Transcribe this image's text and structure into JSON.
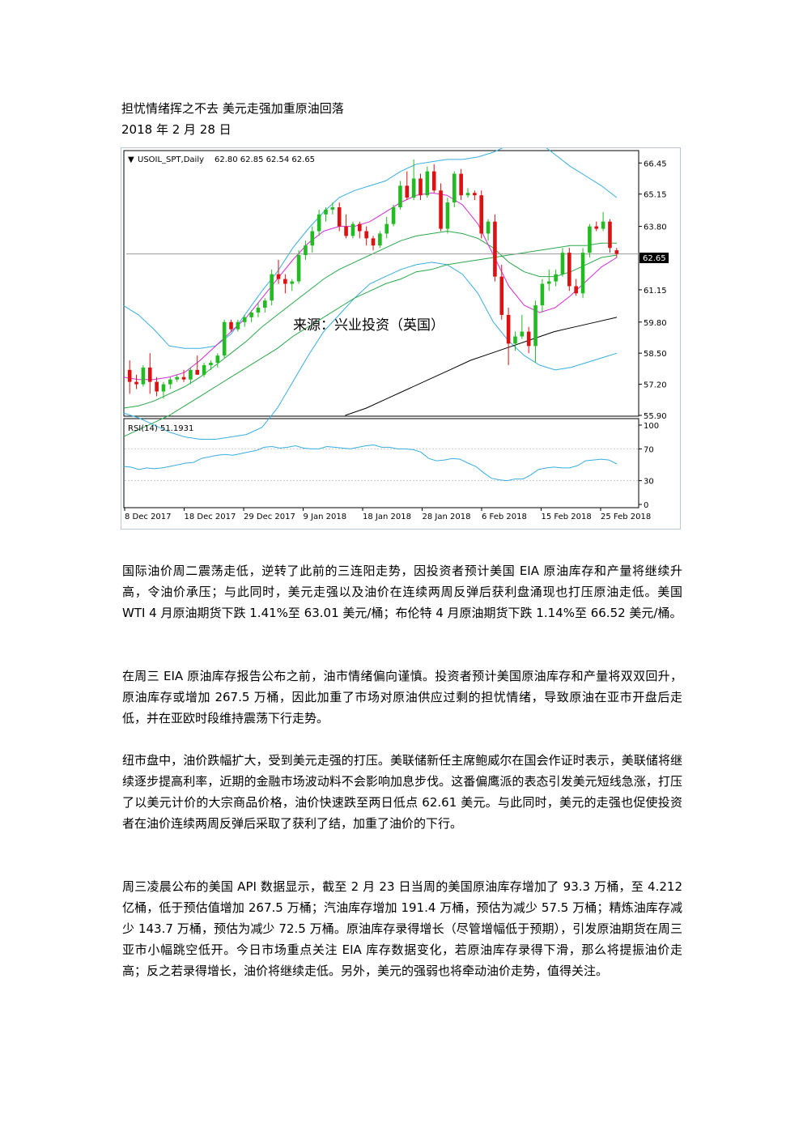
{
  "article": {
    "title": "担忧情绪挥之不去 美元走强加重原油回落",
    "date": "2018 年 2 月 28 日",
    "paragraphs": [
      "国际油价周二震荡走低，逆转了此前的三连阳走势，因投资者预计美国 EIA 原油库存和产量将继续升高，令油价承压；与此同时，美元走强以及油价在连续两周反弹后获利盘涌现也打压原油走低。美国 WTI 4 月原油期货下跌 1.41%至 63.01 美元/桶；布伦特 4 月原油期货下跌 1.14%至 66.52 美元/桶。",
      "在周三 EIA 原油库存报告公布之前，油市情绪偏向谨慎。投资者预计美国原油库存和产量将双双回升，原油库存或增加 267.5 万桶，因此加重了市场对原油供应过剩的担忧情绪，导致原油在亚市开盘后走低，并在亚欧时段维持震荡下行走势。",
      "纽市盘中，油价跌幅扩大，受到美元走强的打压。美联储新任主席鲍威尔在国会作证时表示，美联储将继续逐步提高利率，近期的金融市场波动料不会影响加息步伐。这番偏鹰派的表态引发美元短线急涨，打压了以美元计价的大宗商品价格，油价快速跌至两日低点 62.61 美元。与此同时，美元的走强也促使投资者在油价连续两周反弹后采取了获利了结，加重了油价的下行。",
      "周三凌晨公布的美国 API 数据显示，截至 2 月 23 日当周的美国原油库存增加了 93.3 万桶，至 4.212 亿桶，低于预估值增加 267.5 万桶；汽油库存增加 191.4 万桶，预估为减少 57.5 万桶；精炼油库存减少 143.7 万桶，预估为减少 72.5 万桶。原油库存录得增长（尽管增幅低于预期），引发原油期货在周三亚市小幅跳空低开。今日市场重点关注 EIA 库存数据变化，若原油库存录得下滑，那么将提振油价走高；反之若录得增长，油价将继续走低。另外，美元的强弱也将牵动油价走势，值得关注。"
    ]
  },
  "chart_data": [
    {
      "type": "candlestick",
      "title": "USOIL_SPT,Daily",
      "ohlc_label": "62.80 62.85 62.54 62.65",
      "watermark": "来源：兴业投资（英国）",
      "current_price": "62.65",
      "y_ticks": [
        "66.45",
        "65.15",
        "63.80",
        "61.15",
        "59.80",
        "58.50",
        "57.20",
        "55.90"
      ],
      "ylim": [
        55.9,
        66.9
      ],
      "x_ticks": [
        "8 Dec 2017",
        "18 Dec 2017",
        "29 Dec 2017",
        "9 Jan 2018",
        "18 Jan 2018",
        "28 Jan 2018",
        "6 Feb 2018",
        "15 Feb 2018",
        "25 Feb 2018"
      ],
      "colors": {
        "up": "#22bb22",
        "down": "#dd1111",
        "bollinger": "#38aee0",
        "ma_short": "#d62ad6",
        "ma_mid": "#2aa84a",
        "ma_long": "#000000"
      },
      "candles": [
        {
          "o": 57.8,
          "h": 58.2,
          "l": 56.8,
          "c": 57.3
        },
        {
          "o": 57.3,
          "h": 57.6,
          "l": 57.0,
          "c": 57.2
        },
        {
          "o": 57.2,
          "h": 58.0,
          "l": 57.1,
          "c": 57.9
        },
        {
          "o": 57.9,
          "h": 58.5,
          "l": 56.8,
          "c": 57.3
        },
        {
          "o": 57.3,
          "h": 57.5,
          "l": 56.7,
          "c": 56.9
        },
        {
          "o": 56.9,
          "h": 57.3,
          "l": 56.6,
          "c": 57.2
        },
        {
          "o": 57.2,
          "h": 57.5,
          "l": 57.0,
          "c": 57.4
        },
        {
          "o": 57.4,
          "h": 57.6,
          "l": 57.3,
          "c": 57.5
        },
        {
          "o": 57.5,
          "h": 57.8,
          "l": 57.3,
          "c": 57.4
        },
        {
          "o": 57.4,
          "h": 57.9,
          "l": 57.2,
          "c": 57.8
        },
        {
          "o": 57.8,
          "h": 58.4,
          "l": 57.6,
          "c": 57.6
        },
        {
          "o": 57.6,
          "h": 58.1,
          "l": 57.5,
          "c": 58.0
        },
        {
          "o": 58.0,
          "h": 58.2,
          "l": 57.8,
          "c": 58.1
        },
        {
          "o": 58.1,
          "h": 58.5,
          "l": 57.9,
          "c": 58.4
        },
        {
          "o": 58.4,
          "h": 59.9,
          "l": 58.3,
          "c": 59.8
        },
        {
          "o": 59.8,
          "h": 59.9,
          "l": 59.4,
          "c": 59.5
        },
        {
          "o": 59.5,
          "h": 59.9,
          "l": 59.4,
          "c": 59.8
        },
        {
          "o": 59.8,
          "h": 60.1,
          "l": 59.6,
          "c": 60.0
        },
        {
          "o": 60.0,
          "h": 60.3,
          "l": 59.8,
          "c": 60.2
        },
        {
          "o": 60.2,
          "h": 60.6,
          "l": 60.0,
          "c": 60.4
        },
        {
          "o": 60.4,
          "h": 60.8,
          "l": 60.2,
          "c": 60.7
        },
        {
          "o": 60.7,
          "h": 62.0,
          "l": 60.5,
          "c": 61.8
        },
        {
          "o": 61.8,
          "h": 62.4,
          "l": 61.4,
          "c": 61.6
        },
        {
          "o": 61.6,
          "h": 61.8,
          "l": 61.0,
          "c": 61.4
        },
        {
          "o": 61.4,
          "h": 61.6,
          "l": 61.1,
          "c": 61.5
        },
        {
          "o": 61.5,
          "h": 62.8,
          "l": 61.4,
          "c": 62.6
        },
        {
          "o": 62.6,
          "h": 63.2,
          "l": 62.4,
          "c": 63.0
        },
        {
          "o": 63.0,
          "h": 63.8,
          "l": 62.7,
          "c": 63.6
        },
        {
          "o": 63.6,
          "h": 64.5,
          "l": 63.4,
          "c": 64.3
        },
        {
          "o": 64.3,
          "h": 64.6,
          "l": 64.0,
          "c": 64.5
        },
        {
          "o": 64.5,
          "h": 64.8,
          "l": 64.3,
          "c": 64.6
        },
        {
          "o": 64.6,
          "h": 64.8,
          "l": 63.6,
          "c": 63.8
        },
        {
          "o": 63.8,
          "h": 64.3,
          "l": 63.3,
          "c": 63.4
        },
        {
          "o": 63.4,
          "h": 64.0,
          "l": 63.3,
          "c": 63.9
        },
        {
          "o": 63.9,
          "h": 64.0,
          "l": 63.3,
          "c": 63.6
        },
        {
          "o": 63.6,
          "h": 63.8,
          "l": 63.0,
          "c": 63.3
        },
        {
          "o": 63.3,
          "h": 63.4,
          "l": 62.8,
          "c": 63.0
        },
        {
          "o": 63.0,
          "h": 63.6,
          "l": 62.9,
          "c": 63.5
        },
        {
          "o": 63.5,
          "h": 64.2,
          "l": 63.3,
          "c": 63.9
        },
        {
          "o": 63.9,
          "h": 64.7,
          "l": 63.8,
          "c": 64.6
        },
        {
          "o": 64.6,
          "h": 65.7,
          "l": 64.5,
          "c": 65.5
        },
        {
          "o": 65.5,
          "h": 66.1,
          "l": 64.9,
          "c": 65.0
        },
        {
          "o": 65.0,
          "h": 66.6,
          "l": 64.9,
          "c": 65.8
        },
        {
          "o": 65.8,
          "h": 66.0,
          "l": 64.9,
          "c": 65.1
        },
        {
          "o": 65.1,
          "h": 66.3,
          "l": 65.0,
          "c": 66.1
        },
        {
          "o": 66.1,
          "h": 66.4,
          "l": 65.2,
          "c": 65.3
        },
        {
          "o": 65.3,
          "h": 65.6,
          "l": 63.6,
          "c": 63.7
        },
        {
          "o": 63.7,
          "h": 65.0,
          "l": 63.5,
          "c": 64.8
        },
        {
          "o": 64.8,
          "h": 66.1,
          "l": 64.6,
          "c": 66.0
        },
        {
          "o": 66.0,
          "h": 66.2,
          "l": 64.9,
          "c": 65.1
        },
        {
          "o": 65.1,
          "h": 65.4,
          "l": 65.0,
          "c": 65.2
        },
        {
          "o": 65.2,
          "h": 65.3,
          "l": 64.9,
          "c": 65.1
        },
        {
          "o": 65.1,
          "h": 65.3,
          "l": 63.3,
          "c": 63.5
        },
        {
          "o": 63.5,
          "h": 64.1,
          "l": 63.2,
          "c": 64.0
        },
        {
          "o": 64.0,
          "h": 64.3,
          "l": 61.5,
          "c": 61.7
        },
        {
          "o": 61.7,
          "h": 62.2,
          "l": 59.9,
          "c": 60.1
        },
        {
          "o": 60.1,
          "h": 60.4,
          "l": 58.0,
          "c": 58.9
        },
        {
          "o": 58.9,
          "h": 59.4,
          "l": 58.6,
          "c": 59.2
        },
        {
          "o": 59.2,
          "h": 60.1,
          "l": 59.1,
          "c": 59.4
        },
        {
          "o": 59.4,
          "h": 59.6,
          "l": 58.5,
          "c": 58.8
        },
        {
          "o": 58.8,
          "h": 60.7,
          "l": 58.1,
          "c": 60.5
        },
        {
          "o": 60.5,
          "h": 61.6,
          "l": 60.2,
          "c": 61.4
        },
        {
          "o": 61.4,
          "h": 62.0,
          "l": 61.1,
          "c": 61.5
        },
        {
          "o": 61.5,
          "h": 62.0,
          "l": 61.3,
          "c": 61.8
        },
        {
          "o": 61.8,
          "h": 62.9,
          "l": 61.7,
          "c": 62.7
        },
        {
          "o": 62.7,
          "h": 62.9,
          "l": 61.1,
          "c": 61.3
        },
        {
          "o": 61.3,
          "h": 61.6,
          "l": 60.9,
          "c": 61.0
        },
        {
          "o": 61.0,
          "h": 62.9,
          "l": 60.8,
          "c": 62.7
        },
        {
          "o": 62.7,
          "h": 63.9,
          "l": 62.5,
          "c": 63.8
        },
        {
          "o": 63.8,
          "h": 64.0,
          "l": 63.6,
          "c": 63.7
        },
        {
          "o": 63.7,
          "h": 64.4,
          "l": 63.6,
          "c": 64.0
        },
        {
          "o": 64.0,
          "h": 64.1,
          "l": 62.7,
          "c": 62.9
        },
        {
          "o": 62.8,
          "h": 62.9,
          "l": 62.5,
          "c": 62.65
        }
      ],
      "bollinger_upper": [
        60.5,
        60.1,
        59.5,
        58.8,
        58.7,
        58.7,
        58.8,
        59.3,
        60.2,
        61.1,
        61.9,
        62.9,
        63.7,
        64.4,
        65.0,
        65.3,
        65.5,
        65.7,
        66.1,
        66.4,
        66.5,
        66.6,
        66.6,
        66.7,
        66.9,
        67.2,
        67.4,
        67.3,
        66.8,
        66.3,
        65.9,
        65.5,
        65.0
      ],
      "bollinger_lower": [
        56.0,
        55.8,
        55.5,
        55.2,
        55.0,
        54.9,
        54.9,
        55.0,
        55.1,
        55.4,
        56.2,
        57.3,
        58.4,
        59.4,
        60.1,
        60.8,
        61.4,
        61.7,
        62.0,
        62.2,
        62.3,
        62.2,
        61.8,
        61.0,
        59.8,
        59.0,
        58.4,
        58.0,
        57.8,
        57.9,
        58.1,
        58.3,
        58.5
      ],
      "ma_short": [
        57.5,
        57.4,
        57.4,
        57.5,
        57.7,
        58.2,
        58.8,
        59.4,
        60.0,
        60.8,
        61.6,
        62.4,
        63.1,
        63.6,
        63.8,
        63.8,
        64.0,
        64.4,
        64.8,
        65.1,
        65.2,
        65.1,
        64.7,
        63.9,
        62.6,
        61.3,
        60.5,
        60.2,
        60.4,
        60.9,
        61.5,
        62.1,
        62.5
      ],
      "ma_mid": [
        56.2,
        56.3,
        56.5,
        56.8,
        57.1,
        57.5,
        58.0,
        58.5,
        59.0,
        59.6,
        60.1,
        60.6,
        61.1,
        61.6,
        62.0,
        62.3,
        62.6,
        62.9,
        63.2,
        63.4,
        63.5,
        63.6,
        63.5,
        63.3,
        62.9,
        62.3,
        61.9,
        61.7,
        61.7,
        61.9,
        62.2,
        62.5,
        62.6
      ],
      "ma_mid_long": [
        55.0,
        55.3,
        55.6,
        55.9,
        56.3,
        56.7,
        57.1,
        57.5,
        57.9,
        58.3,
        58.7,
        59.2,
        59.6,
        60.0,
        60.4,
        60.8,
        61.1,
        61.4,
        61.6,
        61.9,
        62.0,
        62.2,
        62.3,
        62.4,
        62.5,
        62.6,
        62.7,
        62.8,
        62.9,
        63.0,
        63.0,
        63.1,
        63.1
      ],
      "ma_long": [
        55.9,
        56.2,
        56.6,
        57.0,
        57.4,
        57.8,
        58.2,
        58.5,
        58.8,
        59.1,
        59.4,
        59.6,
        59.8,
        60.0
      ]
    },
    {
      "type": "line",
      "title": "RSI(14) 51.1931",
      "y_ticks": [
        "100",
        "70",
        "30",
        "0"
      ],
      "ylim": [
        0,
        100
      ],
      "values": [
        48,
        47,
        44,
        46,
        45,
        46,
        48,
        50,
        52,
        53,
        58,
        60,
        62,
        63,
        62,
        64,
        66,
        68,
        72,
        73,
        71,
        72,
        74,
        71,
        70,
        70,
        73,
        72,
        71,
        70,
        72,
        74,
        75,
        72,
        72,
        70,
        70,
        69,
        66,
        58,
        55,
        56,
        58,
        57,
        52,
        48,
        40,
        33,
        31,
        30,
        32,
        32,
        37,
        44,
        46,
        47,
        46,
        46,
        49,
        55,
        56,
        57,
        56,
        51
      ]
    }
  ]
}
